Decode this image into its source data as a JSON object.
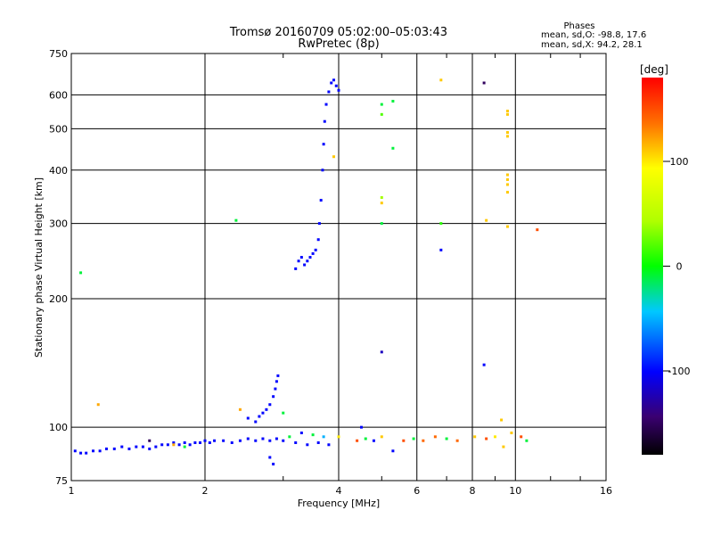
{
  "header": {
    "title_line1": "Tromsø 20160709 05:02:00–05:03:43",
    "title_line2": "RwPretec (8p)"
  },
  "stats": {
    "heading": "Phases",
    "line_o": "mean, sd,O: -98.8, 17.6",
    "line_x": "mean, sd,X:  94.2, 28.1"
  },
  "colorbar": {
    "unit_label": "[deg]",
    "ticks": [
      "100",
      "0",
      "-100"
    ],
    "tick_values": [
      100,
      0,
      -100
    ],
    "range": [
      -180,
      180
    ]
  },
  "chart_data": {
    "type": "scatter",
    "xlabel": "Frequency [MHz]",
    "ylabel": "Stationary phase Virtual Height [km]",
    "x_scale": "log",
    "y_scale": "log",
    "xlim": [
      1,
      16
    ],
    "ylim": [
      75,
      750
    ],
    "x_ticks": [
      1,
      2,
      4,
      6,
      8,
      10,
      16
    ],
    "x_tick_labels": [
      "1",
      "2",
      "4",
      "6",
      "8",
      "10",
      "16"
    ],
    "y_ticks": [
      75,
      100,
      200,
      300,
      400,
      500,
      600,
      750
    ],
    "y_tick_labels": [
      "75",
      "100",
      "200",
      "300",
      "400",
      "500",
      "600",
      "750"
    ],
    "grid": true,
    "points": [
      {
        "x": 1.02,
        "y": 88,
        "phase": -100
      },
      {
        "x": 1.05,
        "y": 87,
        "phase": -100
      },
      {
        "x": 1.08,
        "y": 87,
        "phase": -100
      },
      {
        "x": 1.12,
        "y": 88,
        "phase": -100
      },
      {
        "x": 1.16,
        "y": 88,
        "phase": -100
      },
      {
        "x": 1.2,
        "y": 89,
        "phase": -100
      },
      {
        "x": 1.25,
        "y": 89,
        "phase": -100
      },
      {
        "x": 1.3,
        "y": 90,
        "phase": -100
      },
      {
        "x": 1.35,
        "y": 89,
        "phase": -100
      },
      {
        "x": 1.4,
        "y": 90,
        "phase": -100
      },
      {
        "x": 1.45,
        "y": 90,
        "phase": -100
      },
      {
        "x": 1.5,
        "y": 89,
        "phase": -100
      },
      {
        "x": 1.55,
        "y": 90,
        "phase": -100
      },
      {
        "x": 1.6,
        "y": 91,
        "phase": -100
      },
      {
        "x": 1.65,
        "y": 91,
        "phase": -100
      },
      {
        "x": 1.7,
        "y": 92,
        "phase": -100
      },
      {
        "x": 1.75,
        "y": 91,
        "phase": -100
      },
      {
        "x": 1.8,
        "y": 92,
        "phase": -100
      },
      {
        "x": 1.85,
        "y": 91,
        "phase": -100
      },
      {
        "x": 1.9,
        "y": 92,
        "phase": -100
      },
      {
        "x": 1.95,
        "y": 92,
        "phase": -100
      },
      {
        "x": 2.0,
        "y": 93,
        "phase": -100
      },
      {
        "x": 2.05,
        "y": 92,
        "phase": -100
      },
      {
        "x": 2.1,
        "y": 93,
        "phase": -100
      },
      {
        "x": 2.2,
        "y": 93,
        "phase": -100
      },
      {
        "x": 2.3,
        "y": 92,
        "phase": -100
      },
      {
        "x": 2.4,
        "y": 93,
        "phase": -100
      },
      {
        "x": 2.5,
        "y": 94,
        "phase": -100
      },
      {
        "x": 2.6,
        "y": 93,
        "phase": -100
      },
      {
        "x": 2.7,
        "y": 94,
        "phase": -100
      },
      {
        "x": 2.8,
        "y": 93,
        "phase": -100
      },
      {
        "x": 2.9,
        "y": 94,
        "phase": -100
      },
      {
        "x": 3.0,
        "y": 93,
        "phase": -100
      },
      {
        "x": 3.2,
        "y": 92,
        "phase": -100
      },
      {
        "x": 3.4,
        "y": 91,
        "phase": -100
      },
      {
        "x": 3.6,
        "y": 92,
        "phase": -100
      },
      {
        "x": 3.8,
        "y": 91,
        "phase": -100
      },
      {
        "x": 1.5,
        "y": 93,
        "phase": -150
      },
      {
        "x": 1.7,
        "y": 91,
        "phase": 120
      },
      {
        "x": 1.8,
        "y": 90,
        "phase": -10
      },
      {
        "x": 2.4,
        "y": 110,
        "phase": 120
      },
      {
        "x": 2.5,
        "y": 105,
        "phase": -100
      },
      {
        "x": 2.6,
        "y": 103,
        "phase": -100
      },
      {
        "x": 2.65,
        "y": 106,
        "phase": -100
      },
      {
        "x": 2.7,
        "y": 108,
        "phase": -100
      },
      {
        "x": 2.75,
        "y": 110,
        "phase": -100
      },
      {
        "x": 2.8,
        "y": 113,
        "phase": -100
      },
      {
        "x": 2.85,
        "y": 118,
        "phase": -100
      },
      {
        "x": 2.88,
        "y": 123,
        "phase": -100
      },
      {
        "x": 2.9,
        "y": 128,
        "phase": -100
      },
      {
        "x": 2.92,
        "y": 132,
        "phase": -100
      },
      {
        "x": 2.8,
        "y": 85,
        "phase": -100
      },
      {
        "x": 2.85,
        "y": 82,
        "phase": -100
      },
      {
        "x": 3.1,
        "y": 95,
        "phase": -10
      },
      {
        "x": 3.3,
        "y": 97,
        "phase": -100
      },
      {
        "x": 3.5,
        "y": 96,
        "phase": -10
      },
      {
        "x": 3.7,
        "y": 95,
        "phase": -50
      },
      {
        "x": 4.0,
        "y": 95,
        "phase": 100
      },
      {
        "x": 4.4,
        "y": 93,
        "phase": 150
      },
      {
        "x": 4.6,
        "y": 94,
        "phase": -10
      },
      {
        "x": 4.8,
        "y": 93,
        "phase": -100
      },
      {
        "x": 5.0,
        "y": 95,
        "phase": 110
      },
      {
        "x": 5.3,
        "y": 88,
        "phase": -100
      },
      {
        "x": 5.6,
        "y": 93,
        "phase": 150
      },
      {
        "x": 5.9,
        "y": 94,
        "phase": -10
      },
      {
        "x": 6.2,
        "y": 93,
        "phase": 140
      },
      {
        "x": 6.6,
        "y": 95,
        "phase": 140
      },
      {
        "x": 7.0,
        "y": 94,
        "phase": -10
      },
      {
        "x": 7.4,
        "y": 93,
        "phase": 140
      },
      {
        "x": 8.1,
        "y": 95,
        "phase": 110
      },
      {
        "x": 8.6,
        "y": 94,
        "phase": 150
      },
      {
        "x": 9.0,
        "y": 95,
        "phase": 100
      },
      {
        "x": 9.4,
        "y": 90,
        "phase": 110
      },
      {
        "x": 9.8,
        "y": 97,
        "phase": 110
      },
      {
        "x": 10.3,
        "y": 95,
        "phase": 150
      },
      {
        "x": 10.6,
        "y": 93,
        "phase": -10
      },
      {
        "x": 9.3,
        "y": 104,
        "phase": 110
      },
      {
        "x": 3.2,
        "y": 235,
        "phase": -100
      },
      {
        "x": 3.25,
        "y": 245,
        "phase": -100
      },
      {
        "x": 3.3,
        "y": 250,
        "phase": -100
      },
      {
        "x": 3.35,
        "y": 240,
        "phase": -100
      },
      {
        "x": 3.4,
        "y": 245,
        "phase": -100
      },
      {
        "x": 3.45,
        "y": 250,
        "phase": -100
      },
      {
        "x": 3.5,
        "y": 255,
        "phase": -100
      },
      {
        "x": 3.55,
        "y": 260,
        "phase": -100
      },
      {
        "x": 3.6,
        "y": 275,
        "phase": -100
      },
      {
        "x": 3.62,
        "y": 300,
        "phase": -100
      },
      {
        "x": 3.65,
        "y": 340,
        "phase": -100
      },
      {
        "x": 3.68,
        "y": 400,
        "phase": -100
      },
      {
        "x": 3.7,
        "y": 460,
        "phase": -100
      },
      {
        "x": 3.72,
        "y": 520,
        "phase": -100
      },
      {
        "x": 3.75,
        "y": 570,
        "phase": -100
      },
      {
        "x": 3.8,
        "y": 610,
        "phase": -100
      },
      {
        "x": 3.85,
        "y": 640,
        "phase": -100
      },
      {
        "x": 3.9,
        "y": 650,
        "phase": -100
      },
      {
        "x": 3.95,
        "y": 630,
        "phase": -100
      },
      {
        "x": 4.0,
        "y": 615,
        "phase": -100
      },
      {
        "x": 1.05,
        "y": 230,
        "phase": -10
      },
      {
        "x": 1.15,
        "y": 113,
        "phase": 120
      },
      {
        "x": 2.35,
        "y": 305,
        "phase": -10
      },
      {
        "x": 3.0,
        "y": 108,
        "phase": -10
      },
      {
        "x": 3.9,
        "y": 430,
        "phase": 110
      },
      {
        "x": 4.5,
        "y": 100,
        "phase": -100
      },
      {
        "x": 5.0,
        "y": 570,
        "phase": -10
      },
      {
        "x": 5.0,
        "y": 540,
        "phase": 20
      },
      {
        "x": 5.0,
        "y": 345,
        "phase": 40
      },
      {
        "x": 5.0,
        "y": 335,
        "phase": 110
      },
      {
        "x": 5.0,
        "y": 300,
        "phase": -10
      },
      {
        "x": 5.0,
        "y": 150,
        "phase": -120
      },
      {
        "x": 5.3,
        "y": 580,
        "phase": -10
      },
      {
        "x": 5.3,
        "y": 450,
        "phase": -10
      },
      {
        "x": 6.8,
        "y": 650,
        "phase": 110
      },
      {
        "x": 6.8,
        "y": 300,
        "phase": 10
      },
      {
        "x": 6.8,
        "y": 260,
        "phase": -100
      },
      {
        "x": 8.5,
        "y": 640,
        "phase": -150
      },
      {
        "x": 8.5,
        "y": 140,
        "phase": -100
      },
      {
        "x": 8.6,
        "y": 305,
        "phase": 110
      },
      {
        "x": 9.6,
        "y": 550,
        "phase": 110
      },
      {
        "x": 9.6,
        "y": 540,
        "phase": 110
      },
      {
        "x": 9.6,
        "y": 490,
        "phase": 110
      },
      {
        "x": 9.6,
        "y": 480,
        "phase": 110
      },
      {
        "x": 9.6,
        "y": 390,
        "phase": 110
      },
      {
        "x": 9.6,
        "y": 380,
        "phase": 110
      },
      {
        "x": 9.6,
        "y": 370,
        "phase": 110
      },
      {
        "x": 9.6,
        "y": 355,
        "phase": 110
      },
      {
        "x": 9.6,
        "y": 295,
        "phase": 110
      },
      {
        "x": 11.2,
        "y": 290,
        "phase": 150
      }
    ]
  }
}
